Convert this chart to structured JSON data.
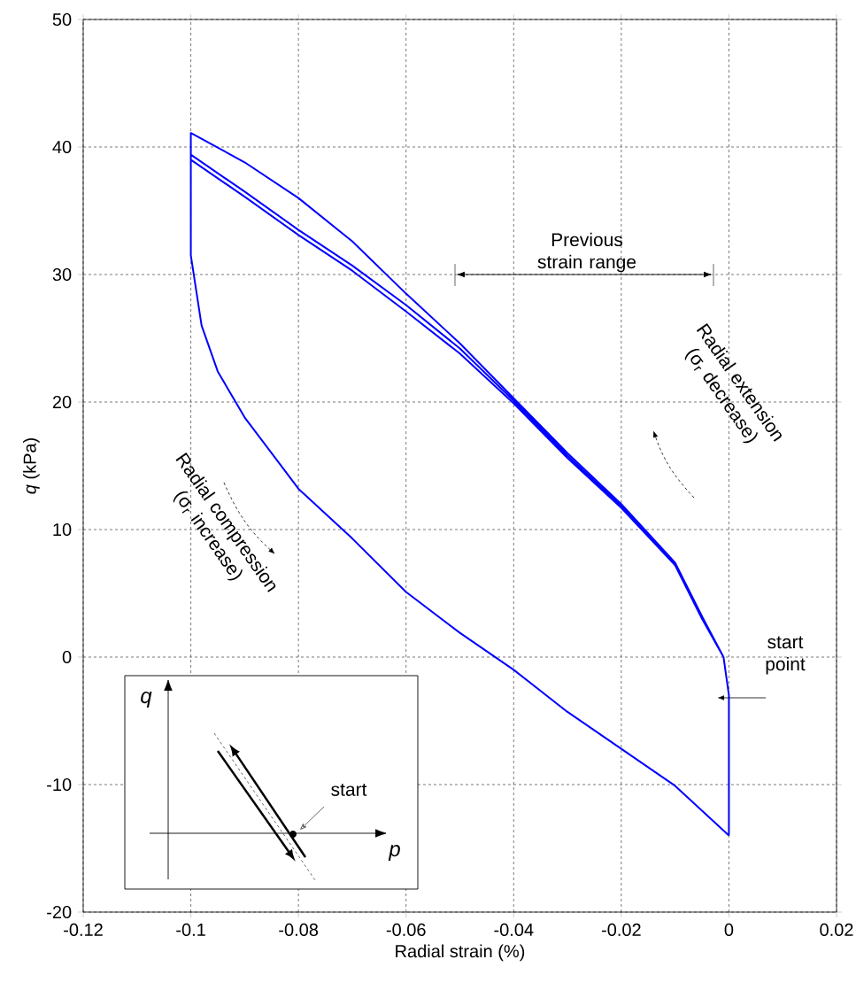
{
  "chart_data": {
    "type": "line",
    "xlabel": "Radial strain (%)",
    "ylabel": "*q* (kPa)",
    "xlim": [
      -0.12,
      0.02
    ],
    "ylim": [
      -20,
      50
    ],
    "xticks": [
      -0.12,
      -0.1,
      -0.08,
      -0.06,
      -0.04,
      -0.02,
      0,
      0.02
    ],
    "yticks": [
      -20,
      -10,
      0,
      10,
      20,
      30,
      40,
      50
    ],
    "grid": true,
    "marker": "none",
    "line_style": "solid",
    "series": [
      {
        "color": "#0000ff",
        "x": [
          -0.1,
          -0.098,
          -0.095,
          -0.09,
          -0.08,
          -0.07,
          -0.06,
          -0.05,
          -0.04,
          -0.03,
          -0.02,
          -0.01,
          0,
          null,
          -0.1,
          -0.1,
          -0.09,
          -0.08,
          -0.07,
          -0.06,
          -0.05,
          -0.04,
          -0.03,
          -0.02,
          -0.01,
          -0.005,
          -0.001,
          0,
          null,
          -0.1,
          -0.1,
          -0.09,
          -0.08,
          -0.07,
          -0.06,
          -0.05,
          -0.04,
          -0.03,
          -0.02,
          -0.01,
          -0.005,
          -0.001,
          0,
          null,
          -0.1,
          -0.1,
          -0.09,
          -0.08,
          -0.07,
          -0.06,
          -0.05,
          -0.04,
          -0.03,
          -0.02,
          -0.01,
          -0.005,
          -0.001,
          0,
          0
        ],
        "values": [
          31.5,
          26,
          22.4,
          18.8,
          13.2,
          9.3,
          5.1,
          1.9,
          -1,
          -4.3,
          -7.2,
          -10.1,
          -14,
          null,
          31.5,
          41.1,
          38.8,
          36,
          32.6,
          28.5,
          24.6,
          20.3,
          16,
          12,
          7.4,
          3.2,
          0,
          -3,
          null,
          31.5,
          39.4,
          36.5,
          33.5,
          30.7,
          27.6,
          24.2,
          20.1,
          15.8,
          11.8,
          7.3,
          3.1,
          0,
          -3,
          null,
          31.5,
          39,
          36.1,
          33.1,
          30.3,
          27.1,
          23.8,
          19.9,
          15.6,
          11.7,
          7.2,
          3,
          0,
          -3,
          -14
        ]
      }
    ],
    "annotations": [
      "Previous strain range",
      "Radial extension (σ$_{r}$ decrease)",
      "Radial compression (σ$_{r}$ increase)",
      "start point",
      "q",
      "p",
      "start"
    ]
  }
}
